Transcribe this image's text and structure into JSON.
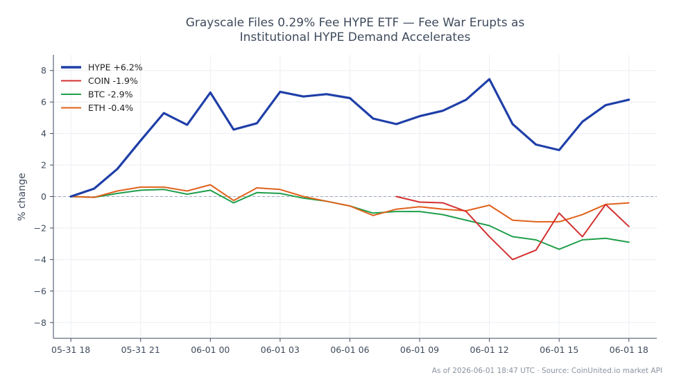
{
  "chart_data": {
    "type": "line",
    "title": [
      "Grayscale Files 0.29% Fee HYPE ETF — Fee War Erupts as",
      "Institutional HYPE Demand Accelerates"
    ],
    "ylabel": "% change",
    "xlabel": "",
    "ylim": [
      -9,
      9
    ],
    "yticks": [
      -8,
      -6,
      -4,
      -2,
      0,
      2,
      4,
      6,
      8
    ],
    "ytick_labels": [
      "−8",
      "−6",
      "−4",
      "−2",
      "0",
      "2",
      "4",
      "6",
      "8"
    ],
    "xlim": [
      -0.75,
      25.2
    ],
    "xticks": [
      0,
      3,
      6,
      9,
      12,
      15,
      18,
      21,
      24
    ],
    "xtick_labels": [
      "05-31 18",
      "05-31 21",
      "06-01 00",
      "06-01 03",
      "06-01 06",
      "06-01 09",
      "06-01 12",
      "06-01 15",
      "06-01 18"
    ],
    "grid": true,
    "zero_line": true,
    "legend_position": "top-left",
    "series": [
      {
        "name": "HYPE +6.2%",
        "color": "#1f3fa8",
        "x": [
          0,
          1,
          2,
          3,
          4,
          5,
          6,
          7,
          8,
          9,
          10,
          11,
          12,
          13,
          14,
          15,
          16,
          17,
          18,
          19,
          20,
          21,
          22,
          23,
          24
        ],
        "values": [
          0,
          0.5,
          1.75,
          3.55,
          5.3,
          4.55,
          6.6,
          4.25,
          4.65,
          6.65,
          6.35,
          6.5,
          6.25,
          4.95,
          4.6,
          5.1,
          5.45,
          6.15,
          7.45,
          4.6,
          3.3,
          2.95,
          4.75,
          5.8,
          6.15
        ]
      },
      {
        "name": "COIN -1.9%",
        "color": "#d32f2f",
        "x": [
          14,
          15,
          16,
          17,
          18,
          19,
          20,
          21,
          22,
          23,
          24
        ],
        "values": [
          0,
          -0.35,
          -0.4,
          -0.95,
          -2.55,
          -4.0,
          -3.4,
          -1.05,
          -2.55,
          -0.5,
          -1.9
        ]
      },
      {
        "name": "BTC -2.9%",
        "color": "#1e9e4a",
        "x": [
          0,
          1,
          2,
          3,
          4,
          5,
          6,
          7,
          8,
          9,
          10,
          11,
          12,
          13,
          14,
          15,
          16,
          17,
          18,
          19,
          20,
          21,
          22,
          23,
          24
        ],
        "values": [
          0,
          -0.05,
          0.2,
          0.4,
          0.45,
          0.15,
          0.4,
          -0.4,
          0.25,
          0.2,
          -0.1,
          -0.3,
          -0.6,
          -1.05,
          -0.95,
          -0.95,
          -1.15,
          -1.5,
          -1.85,
          -2.55,
          -2.75,
          -3.35,
          -2.75,
          -2.65,
          -2.9
        ]
      },
      {
        "name": "ETH -0.4%",
        "color": "#e0601a",
        "x": [
          0,
          1,
          2,
          3,
          4,
          5,
          6,
          7,
          8,
          9,
          10,
          11,
          12,
          13,
          14,
          15,
          16,
          17,
          18,
          19,
          20,
          21,
          22,
          23,
          24
        ],
        "values": [
          0,
          -0.05,
          0.35,
          0.6,
          0.6,
          0.35,
          0.75,
          -0.25,
          0.55,
          0.45,
          0.0,
          -0.3,
          -0.6,
          -1.2,
          -0.8,
          -0.65,
          -0.8,
          -0.9,
          -0.55,
          -1.5,
          -1.6,
          -1.6,
          -1.15,
          -0.5,
          -0.4
        ]
      }
    ],
    "footnote": "As of 2026-06-01 18:47 UTC · Source: CoinUnited.io market API"
  }
}
